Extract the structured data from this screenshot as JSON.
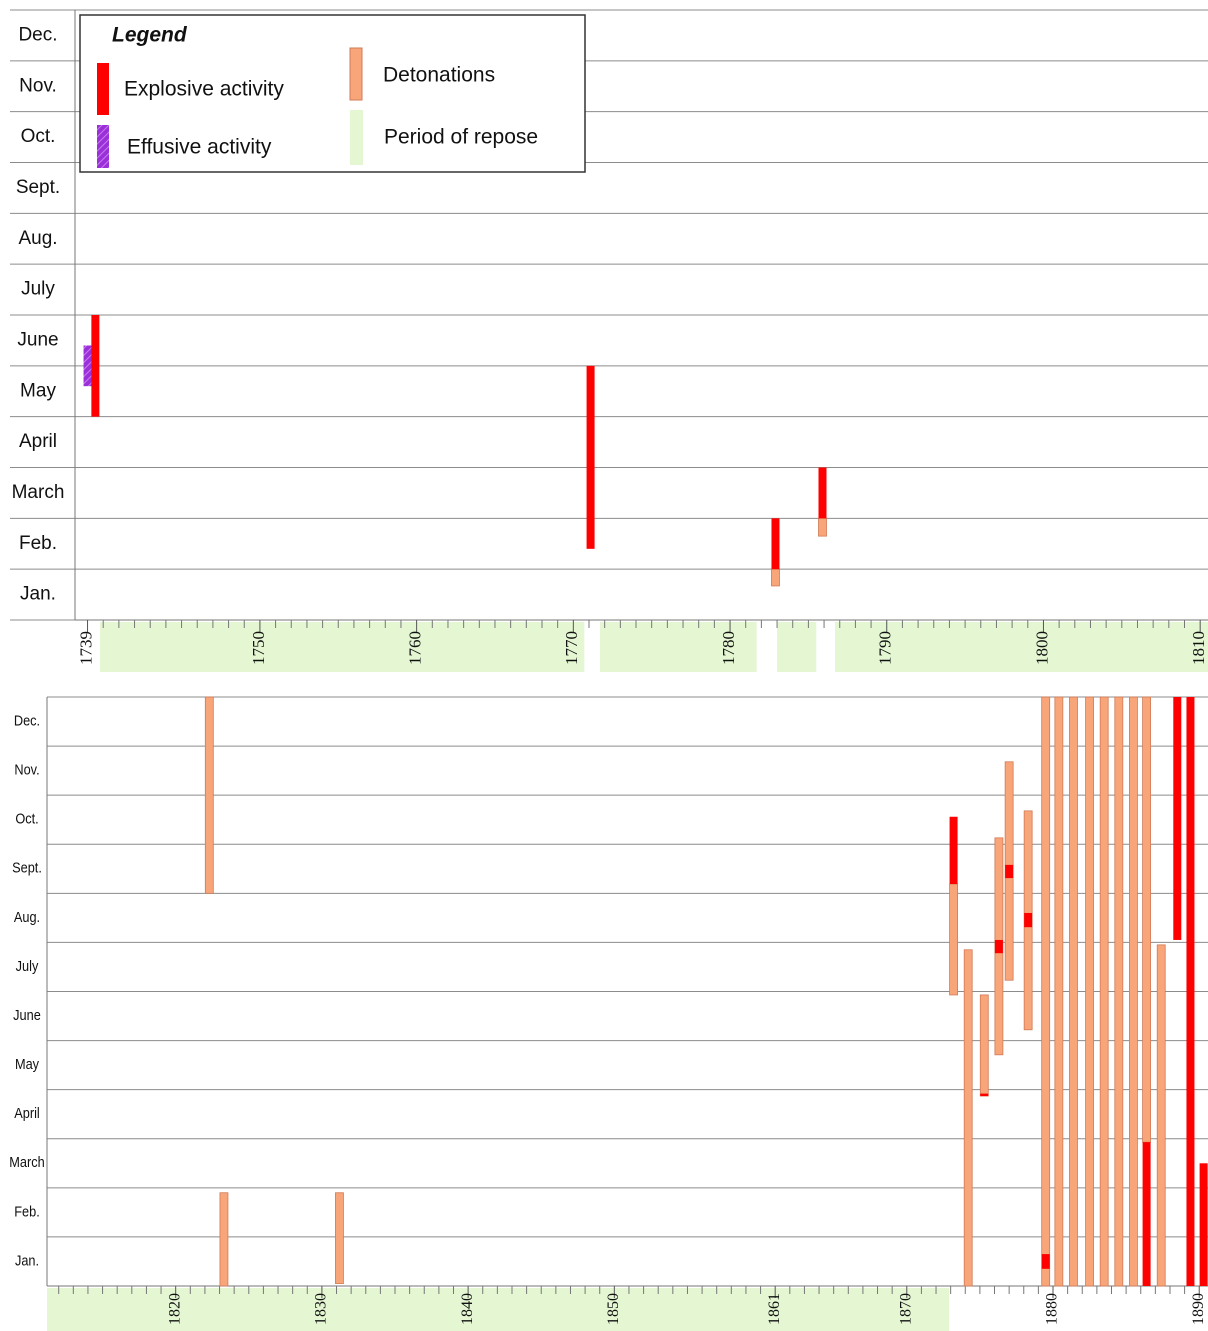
{
  "chart_data": [
    {
      "type": "timeline",
      "legend_title": "Legend",
      "repose_name": "Period of repose",
      "repose_color": "#e4f6d2",
      "categories": [
        "Jan.",
        "Feb.",
        "March",
        "April",
        "May",
        "June",
        "July",
        "Aug.",
        "Sept.",
        "Oct.",
        "Nov.",
        "Dec."
      ],
      "ylim": [
        0,
        12
      ],
      "yticks": [
        0,
        1,
        2,
        3,
        4,
        5,
        6,
        7,
        8,
        9,
        10,
        11,
        12
      ],
      "xlim": [
        1738.2,
        1810.5
      ],
      "xticks": [
        1739,
        1750,
        1760,
        1770,
        1780,
        1790,
        1800,
        1810
      ],
      "minor_xticks": [
        1740,
        1741,
        1742,
        1743,
        1744,
        1745,
        1746,
        1747,
        1748,
        1749,
        1751,
        1752,
        1753,
        1754,
        1755,
        1756,
        1757,
        1758,
        1759,
        1761,
        1762,
        1763,
        1764,
        1765,
        1766,
        1767,
        1768,
        1769,
        1771,
        1772,
        1773,
        1774,
        1775,
        1776,
        1777,
        1778,
        1779,
        1781,
        1782,
        1783,
        1784,
        1785,
        1786,
        1787,
        1788,
        1789,
        1791,
        1792,
        1793,
        1794,
        1795,
        1796,
        1797,
        1798,
        1799,
        1801,
        1802,
        1803,
        1804,
        1805,
        1806,
        1807,
        1808,
        1809
      ],
      "repose": [
        [
          1739.8,
          1770.7
        ],
        [
          1771.7,
          1781.7
        ],
        [
          1783.0,
          1785.5
        ],
        [
          1786.7,
          1810.5
        ]
      ],
      "series": [
        {
          "name": "Explosive activity",
          "color": "#ff0000",
          "values": [
            {
              "x": 1739.5,
              "start": 4.0,
              "end": 6.0
            },
            {
              "x": 1771.1,
              "start": 1.4,
              "end": 5.0
            },
            {
              "x": 1782.9,
              "start": 1.0,
              "end": 2.0
            },
            {
              "x": 1785.9,
              "start": 2.0,
              "end": 3.0
            }
          ]
        },
        {
          "name": "Effusive activity",
          "color": "#9b30d9",
          "hatch": true,
          "values": [
            {
              "x": 1739.0,
              "start": 4.6,
              "end": 5.4
            }
          ]
        },
        {
          "name": "Detonations",
          "color": "#f9a57a",
          "values": [
            {
              "x": 1782.9,
              "start": 0.67,
              "end": 1.0
            },
            {
              "x": 1785.9,
              "start": 1.65,
              "end": 2.0
            }
          ]
        }
      ]
    },
    {
      "type": "timeline",
      "repose_color": "#e4f6d2",
      "categories": [
        "Jan.",
        "Feb.",
        "March",
        "April",
        "May",
        "June",
        "July",
        "Aug.",
        "Sept.",
        "Oct.",
        "Nov.",
        "Dec."
      ],
      "ylim": [
        0,
        12
      ],
      "yticks": [
        0,
        1,
        2,
        3,
        4,
        5,
        6,
        7,
        8,
        9,
        10,
        11,
        12
      ],
      "xlim": [
        1811.2,
        1890.6
      ],
      "xticks": [
        1820,
        1830,
        1840,
        1850,
        1861,
        1870,
        1880,
        1890
      ],
      "minor_xticks": [
        1812,
        1813,
        1814,
        1815,
        1816,
        1817,
        1818,
        1819,
        1821,
        1822,
        1823,
        1824,
        1825,
        1826,
        1827,
        1828,
        1829,
        1831,
        1832,
        1833,
        1834,
        1835,
        1836,
        1837,
        1838,
        1839,
        1841,
        1842,
        1843,
        1844,
        1845,
        1846,
        1847,
        1848,
        1849,
        1851,
        1852,
        1853,
        1854,
        1855,
        1856,
        1857,
        1858,
        1859,
        1860,
        1862,
        1863,
        1864,
        1865,
        1866,
        1867,
        1868,
        1869,
        1871,
        1872,
        1873,
        1874,
        1875,
        1876,
        1877,
        1878,
        1879,
        1881,
        1882,
        1883,
        1884,
        1885,
        1886,
        1887,
        1888,
        1889
      ],
      "repose": [
        [
          1811.2,
          1872.9
        ]
      ],
      "series": [
        {
          "color": "#ff0000",
          "values": [
            {
              "x": 1873.2,
              "start": 8.19,
              "end": 9.56
            },
            {
              "x": 1875.3,
              "start": 3.87,
              "end": 3.92
            },
            {
              "x": 1876.3,
              "start": 6.78,
              "end": 7.05
            },
            {
              "x": 1877.0,
              "start": 8.31,
              "end": 8.58
            },
            {
              "x": 1878.3,
              "start": 7.31,
              "end": 7.6
            },
            {
              "x": 1879.5,
              "start": 0.35,
              "end": 0.65
            },
            {
              "x": 1886.4,
              "start": 0,
              "end": 2.93
            },
            {
              "x": 1888.5,
              "start": 7.05,
              "end": 12
            },
            {
              "x": 1889.4,
              "start": 0,
              "end": 12
            },
            {
              "x": 1890.3,
              "start": 0,
              "end": 2.5
            }
          ]
        },
        {
          "color": "#f9a57a",
          "values": [
            {
              "x": 1822.3,
              "start": 8.0,
              "end": 12
            },
            {
              "x": 1823.3,
              "start": 0,
              "end": 1.9
            },
            {
              "x": 1831.2,
              "start": 0.05,
              "end": 1.9
            },
            {
              "x": 1873.2,
              "start": 5.93,
              "end": 8.19
            },
            {
              "x": 1874.2,
              "start": 0,
              "end": 6.85
            },
            {
              "x": 1875.3,
              "start": 3.87,
              "end": 5.93
            },
            {
              "x": 1876.3,
              "start": 4.71,
              "end": 9.13
            },
            {
              "x": 1877.0,
              "start": 6.23,
              "end": 10.68
            },
            {
              "x": 1878.3,
              "start": 5.22,
              "end": 9.68
            },
            {
              "x": 1879.5,
              "start": 0,
              "end": 12
            },
            {
              "x": 1880.4,
              "start": 0,
              "end": 12
            },
            {
              "x": 1881.4,
              "start": 0,
              "end": 12
            },
            {
              "x": 1882.5,
              "start": 0,
              "end": 12
            },
            {
              "x": 1883.5,
              "start": 0,
              "end": 12
            },
            {
              "x": 1884.5,
              "start": 0,
              "end": 12
            },
            {
              "x": 1885.5,
              "start": 0,
              "end": 12
            },
            {
              "x": 1886.4,
              "start": 2.93,
              "end": 12
            },
            {
              "x": 1887.4,
              "start": 0,
              "end": 6.95
            }
          ]
        }
      ]
    }
  ]
}
